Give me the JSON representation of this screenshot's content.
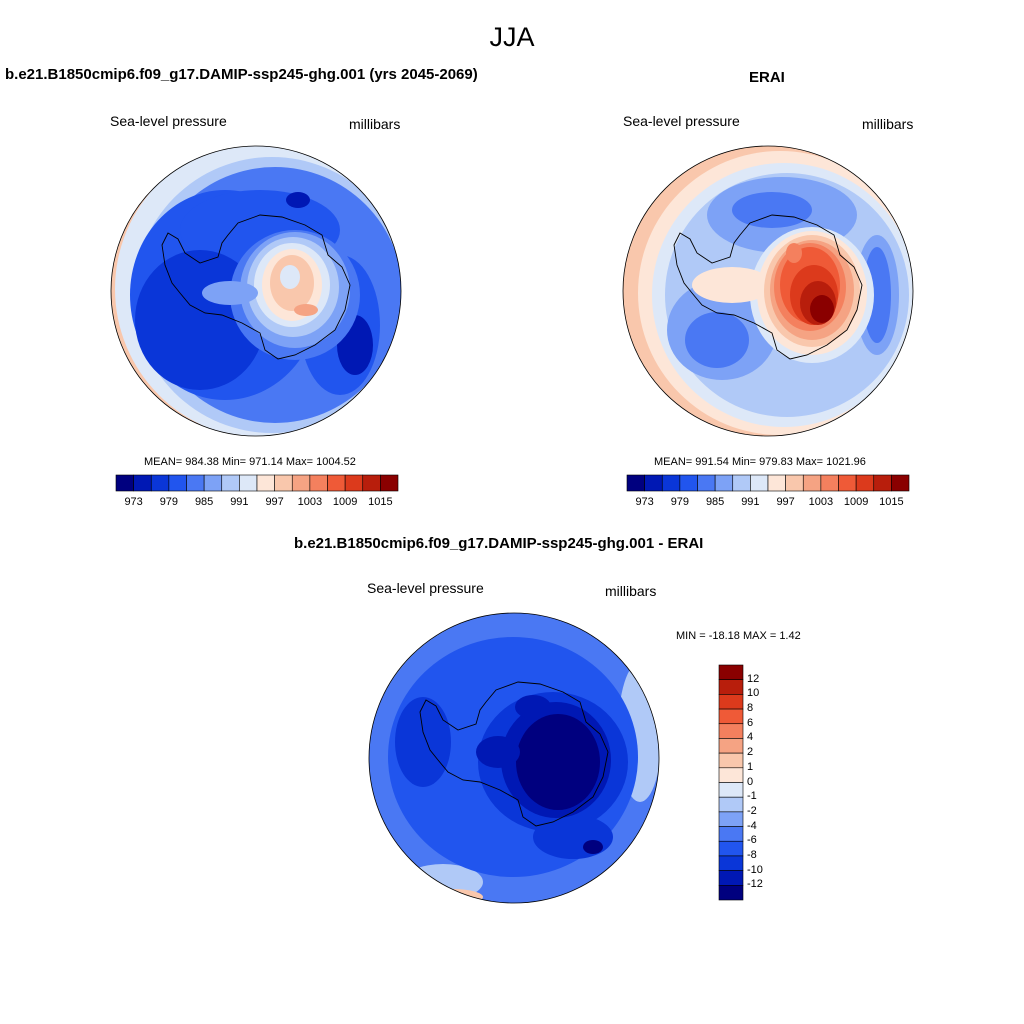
{
  "page": {
    "title": "JJA"
  },
  "panels": [
    {
      "id": "model",
      "title": "b.e21.B1850cmip6.f09_g17.DAMIP-ssp245-ghg.001 (yrs 2045-2069)",
      "left_label": "Sea-level pressure",
      "right_label": "millibars",
      "stats": "MEAN= 984.38  Min= 971.14  Max= 1004.52",
      "colorbar": {
        "orientation": "horizontal",
        "colors": [
          "#00007f",
          "#0018b4",
          "#0a36d8",
          "#2155ee",
          "#4a78f3",
          "#7da2f6",
          "#b0c9f7",
          "#dde8f8",
          "#fde6d8",
          "#f9c7ac",
          "#f5a383",
          "#f4805e",
          "#ef5a37",
          "#dc3a1c",
          "#b81e0c",
          "#8a0000"
        ],
        "labels": [
          "973",
          "979",
          "985",
          "991",
          "997",
          "1003",
          "1009",
          "1015"
        ]
      }
    },
    {
      "id": "obs",
      "title": "ERAI",
      "left_label": "Sea-level pressure",
      "right_label": "millibars",
      "stats": "MEAN= 991.54  Min= 979.83  Max= 1021.96",
      "colorbar": {
        "orientation": "horizontal",
        "colors": [
          "#00007f",
          "#0018b4",
          "#0a36d8",
          "#2155ee",
          "#4a78f3",
          "#7da2f6",
          "#b0c9f7",
          "#dde8f8",
          "#fde6d8",
          "#f9c7ac",
          "#f5a383",
          "#f4805e",
          "#ef5a37",
          "#dc3a1c",
          "#b81e0c",
          "#8a0000"
        ],
        "labels": [
          "973",
          "979",
          "985",
          "991",
          "997",
          "1003",
          "1009",
          "1015"
        ]
      }
    },
    {
      "id": "diff",
      "title": "b.e21.B1850cmip6.f09_g17.DAMIP-ssp245-ghg.001 - ERAI",
      "left_label": "Sea-level pressure",
      "right_label": "millibars",
      "stats": "MIN = -18.18 MAX =   1.42",
      "colorbar": {
        "orientation": "vertical",
        "colors_top_to_bottom": [
          "#8a0000",
          "#b81e0c",
          "#dc3a1c",
          "#ef5a37",
          "#f4805e",
          "#f5a383",
          "#f9c7ac",
          "#fde6d8",
          "#dde8f8",
          "#b0c9f7",
          "#7da2f6",
          "#4a78f3",
          "#2155ee",
          "#0a36d8",
          "#0018b4",
          "#00007f"
        ],
        "labels": [
          "12",
          "10",
          "8",
          "6",
          "4",
          "2",
          "1",
          "0",
          "-1",
          "-2",
          "-4",
          "-6",
          "-8",
          "-10",
          "-12"
        ]
      }
    }
  ]
}
